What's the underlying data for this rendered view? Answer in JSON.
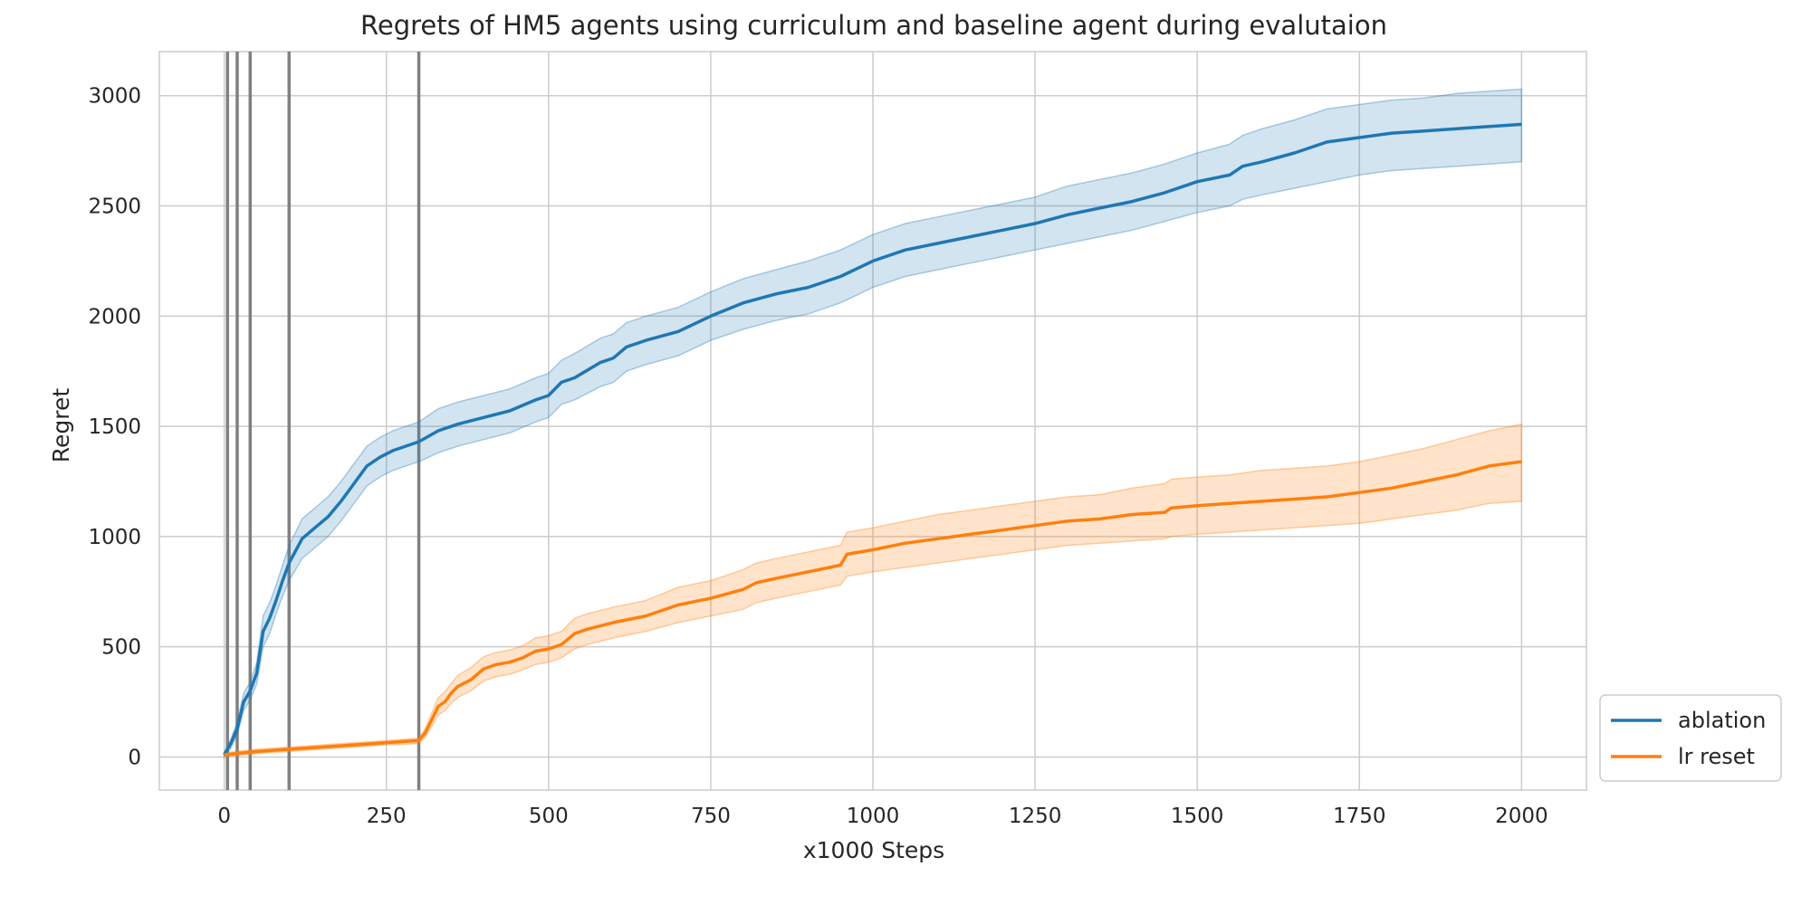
{
  "chart_data": {
    "type": "line",
    "title": "Regrets of HM5 agents using curriculum and baseline agent during evalutaion",
    "xlabel": "x1000 Steps",
    "ylabel": "Regret",
    "xlim": [
      -100,
      2100
    ],
    "ylim": [
      -150,
      3200
    ],
    "xticks": [
      0,
      250,
      500,
      750,
      1000,
      1250,
      1500,
      1750,
      2000
    ],
    "yticks": [
      0,
      500,
      1000,
      1500,
      2000,
      2500,
      3000
    ],
    "xtick_labels": [
      "0",
      "250",
      "500",
      "750",
      "1000",
      "1250",
      "1500",
      "1750",
      "2000"
    ],
    "ytick_labels": [
      "0",
      "500",
      "1000",
      "1500",
      "2000",
      "2500",
      "3000"
    ],
    "grid": true,
    "legend_position": "bottom-right outside",
    "vertical_markers": [
      5,
      20,
      40,
      100,
      300
    ],
    "series": [
      {
        "name": "ablation",
        "color": "#1f77b4",
        "band_color": "#1f77b4",
        "x": [
          0,
          10,
          20,
          30,
          40,
          50,
          60,
          70,
          80,
          90,
          100,
          120,
          140,
          160,
          180,
          200,
          220,
          240,
          260,
          280,
          300,
          330,
          360,
          400,
          440,
          480,
          500,
          520,
          540,
          580,
          600,
          620,
          650,
          700,
          750,
          800,
          850,
          900,
          950,
          1000,
          1050,
          1100,
          1150,
          1200,
          1250,
          1300,
          1350,
          1400,
          1450,
          1500,
          1550,
          1570,
          1600,
          1650,
          1700,
          1750,
          1800,
          1850,
          1900,
          1950,
          2000
        ],
        "y": [
          10,
          60,
          130,
          250,
          300,
          380,
          570,
          630,
          710,
          800,
          880,
          990,
          1040,
          1090,
          1160,
          1240,
          1320,
          1360,
          1390,
          1410,
          1430,
          1480,
          1510,
          1540,
          1570,
          1620,
          1640,
          1700,
          1720,
          1790,
          1810,
          1860,
          1890,
          1930,
          2000,
          2060,
          2100,
          2130,
          2180,
          2250,
          2300,
          2330,
          2360,
          2390,
          2420,
          2460,
          2490,
          2520,
          2560,
          2610,
          2640,
          2680,
          2700,
          2740,
          2790,
          2810,
          2830,
          2840,
          2850,
          2860,
          2870
        ],
        "lower": [
          0,
          40,
          100,
          210,
          260,
          330,
          500,
          560,
          650,
          730,
          800,
          900,
          950,
          1000,
          1070,
          1150,
          1230,
          1270,
          1300,
          1320,
          1340,
          1380,
          1410,
          1440,
          1470,
          1520,
          1540,
          1600,
          1620,
          1680,
          1700,
          1750,
          1780,
          1820,
          1890,
          1940,
          1980,
          2010,
          2060,
          2130,
          2180,
          2210,
          2240,
          2270,
          2300,
          2330,
          2360,
          2390,
          2430,
          2470,
          2500,
          2530,
          2550,
          2580,
          2610,
          2640,
          2660,
          2670,
          2680,
          2690,
          2700
        ],
        "upper": [
          20,
          80,
          160,
          290,
          340,
          430,
          640,
          700,
          780,
          870,
          960,
          1080,
          1130,
          1180,
          1250,
          1330,
          1410,
          1450,
          1480,
          1500,
          1520,
          1580,
          1610,
          1640,
          1670,
          1720,
          1740,
          1800,
          1830,
          1900,
          1920,
          1970,
          2000,
          2040,
          2110,
          2170,
          2210,
          2250,
          2300,
          2370,
          2420,
          2450,
          2480,
          2510,
          2540,
          2590,
          2620,
          2650,
          2690,
          2740,
          2780,
          2820,
          2850,
          2890,
          2940,
          2960,
          2980,
          2990,
          3010,
          3020,
          3030
        ]
      },
      {
        "name": "lr reset",
        "color": "#ff7f0e",
        "band_color": "#ff7f0e",
        "x": [
          0,
          50,
          100,
          150,
          200,
          250,
          300,
          310,
          320,
          330,
          340,
          350,
          360,
          380,
          400,
          420,
          440,
          460,
          480,
          500,
          520,
          540,
          560,
          600,
          650,
          700,
          750,
          800,
          820,
          850,
          900,
          950,
          960,
          1000,
          1050,
          1100,
          1150,
          1200,
          1250,
          1300,
          1350,
          1400,
          1450,
          1460,
          1500,
          1550,
          1600,
          1650,
          1700,
          1750,
          1800,
          1850,
          1900,
          1950,
          2000
        ],
        "y": [
          10,
          25,
          35,
          45,
          55,
          65,
          75,
          110,
          170,
          230,
          250,
          290,
          320,
          350,
          400,
          420,
          430,
          450,
          480,
          490,
          510,
          560,
          580,
          610,
          640,
          690,
          720,
          760,
          790,
          810,
          840,
          870,
          920,
          940,
          970,
          990,
          1010,
          1030,
          1050,
          1070,
          1080,
          1100,
          1110,
          1130,
          1140,
          1150,
          1160,
          1170,
          1180,
          1200,
          1220,
          1250,
          1280,
          1320,
          1340
        ],
        "lower": [
          0,
          15,
          25,
          35,
          45,
          55,
          60,
          90,
          140,
          190,
          210,
          245,
          270,
          300,
          345,
          365,
          375,
          395,
          420,
          430,
          450,
          490,
          510,
          540,
          570,
          610,
          640,
          670,
          700,
          720,
          750,
          780,
          820,
          840,
          860,
          880,
          900,
          920,
          940,
          960,
          970,
          980,
          990,
          1000,
          1010,
          1020,
          1030,
          1040,
          1050,
          1060,
          1080,
          1100,
          1120,
          1150,
          1160
        ],
        "upper": [
          20,
          35,
          45,
          55,
          65,
          75,
          85,
          130,
          200,
          270,
          295,
          335,
          370,
          405,
          455,
          475,
          485,
          505,
          540,
          550,
          570,
          630,
          650,
          680,
          710,
          770,
          800,
          850,
          880,
          900,
          930,
          960,
          1020,
          1040,
          1070,
          1100,
          1120,
          1140,
          1160,
          1180,
          1190,
          1220,
          1240,
          1260,
          1270,
          1280,
          1300,
          1310,
          1320,
          1340,
          1370,
          1400,
          1440,
          1480,
          1510
        ]
      }
    ]
  }
}
